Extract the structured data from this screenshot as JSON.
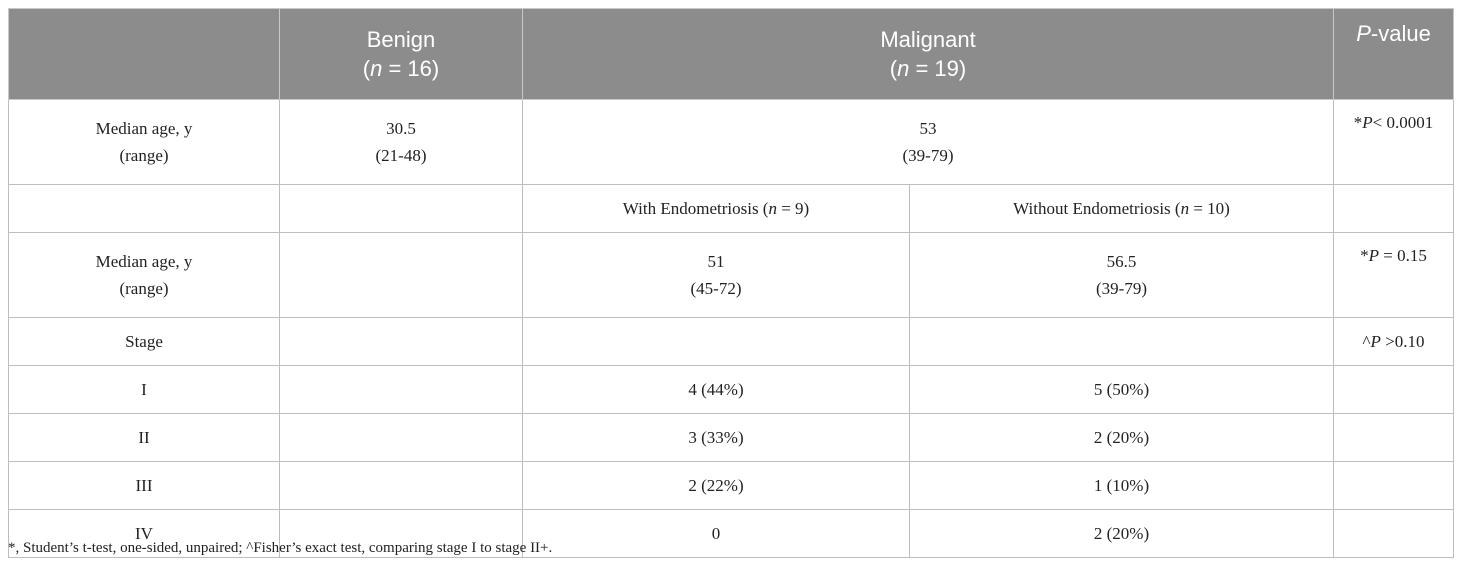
{
  "header": {
    "empty": "",
    "benign_title": "Benign",
    "benign_n_open": "(",
    "benign_n_var": "n",
    "benign_n_rest": " = 16)",
    "malignant_title": "Malignant",
    "malignant_n_open": "(",
    "malignant_n_var": "n",
    "malignant_n_rest": " = 19)",
    "pvalue_italic": "P",
    "pvalue_rest": "-value"
  },
  "rows": {
    "age_overall": {
      "label_line1": "Median age, y",
      "label_line2": "(range)",
      "benign_line1": "30.5",
      "benign_line2": "(21-48)",
      "malignant_line1": "53",
      "malignant_line2": "(39-79)",
      "p_prefix": "*",
      "p_italic": "P",
      "p_rest": "< 0.0001"
    },
    "subheader": {
      "with_text": "With Endometriosis (",
      "with_var": "n",
      "with_rest": " = 9)",
      "without_text": "Without Endometriosis (",
      "without_var": "n",
      "without_rest": " = 10)"
    },
    "age_endo": {
      "label_line1": "Median age, y",
      "label_line2": "(range)",
      "with_line1": "51",
      "with_line2": "(45-72)",
      "without_line1": "56.5",
      "without_line2": "(39-79)",
      "p_prefix": "*",
      "p_italic": "P",
      "p_rest": " = 0.15"
    },
    "stage": {
      "label": "Stage",
      "p_prefix": "^",
      "p_italic": "P",
      "p_rest": " >0.10"
    },
    "stage_items": [
      {
        "label": "I",
        "with": "4 (44%)",
        "without": "5 (50%)"
      },
      {
        "label": "II",
        "with": "3 (33%)",
        "without": "2 (20%)"
      },
      {
        "label": "III",
        "with": "2 (22%)",
        "without": "1 (10%)"
      },
      {
        "label": "IV",
        "with": "0",
        "without": "2 (20%)"
      }
    ]
  },
  "footnote": "*, Student’s t-test, one-sided, unpaired; ^Fisher’s exact test, comparing stage I to stage II+."
}
